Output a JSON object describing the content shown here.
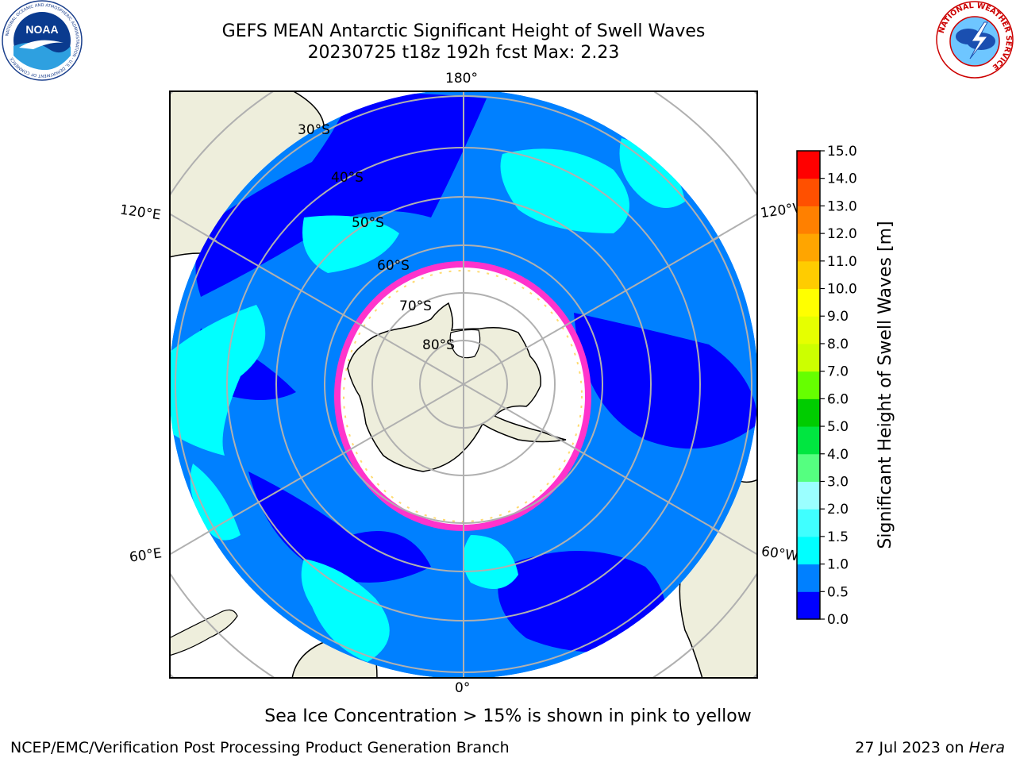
{
  "header": {
    "title_line1": "GEFS MEAN Antarctic Significant Height of Swell Waves",
    "title_line2": "20230725 t18z 192h fcst   Max: 2.23"
  },
  "logos": {
    "left": {
      "name": "noaa-logo",
      "text": "NOAA",
      "ring_text": "NATIONAL OCEANIC AND ATMOSPHERIC ADMINISTRATION · U.S. DEPARTMENT OF COMMERCE"
    },
    "right": {
      "name": "nws-logo",
      "ring_text": "NATIONAL WEATHER SERVICE"
    }
  },
  "map": {
    "projection": "south-polar-stereographic",
    "longitude_labels": {
      "top": "180°",
      "bottom": "0°",
      "upper_left": "120°E",
      "lower_left": "60°E",
      "upper_right": "120°W",
      "lower_right": "60°W"
    },
    "latitude_labels": [
      "30°S",
      "40°S",
      "50°S",
      "60°S",
      "70°S",
      "80°S"
    ],
    "colors": {
      "land": "#eeeedc",
      "ocean_low": "#0000ff",
      "ocean_mid": "#0080ff",
      "ocean_high": "#00ffff",
      "ice_interior": "#ffffff",
      "ice_edge": "#ff33cc",
      "grid": "#b0b0b0"
    }
  },
  "colorbar": {
    "label": "Significant Height of Swell Waves [m]",
    "ticks": [
      "0.0",
      "0.5",
      "1.0",
      "1.5",
      "2.0",
      "3.0",
      "4.0",
      "5.0",
      "6.0",
      "7.0",
      "8.0",
      "9.0",
      "10.0",
      "11.0",
      "12.0",
      "13.0",
      "14.0",
      "15.0"
    ],
    "colors": [
      "#0000ff",
      "#0080ff",
      "#00ffff",
      "#40ffff",
      "#9bffff",
      "#55ff80",
      "#00e640",
      "#00cc00",
      "#66ff00",
      "#ccff00",
      "#e6ff00",
      "#ffff00",
      "#ffcc00",
      "#ffa500",
      "#ff8000",
      "#ff5000",
      "#ff0000"
    ]
  },
  "caption": "Sea Ice Concentration > 15% is shown in pink to yellow",
  "footer": {
    "left": "NCEP/EMC/Verification Post Processing Product Generation Branch",
    "right_prefix": "27 Jul 2023 on ",
    "right_host": "Hera"
  }
}
